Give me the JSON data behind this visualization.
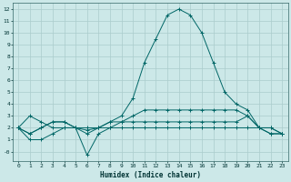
{
  "title": "",
  "xlabel": "Humidex (Indice chaleur)",
  "ylabel": "",
  "bg_color": "#cce8e8",
  "grid_color": "#aacccc",
  "line_color": "#006666",
  "xlim": [
    -0.5,
    23.5
  ],
  "ylim": [
    -0.8,
    12.5
  ],
  "yticks": [
    0,
    1,
    2,
    3,
    4,
    5,
    6,
    7,
    8,
    9,
    10,
    11,
    12
  ],
  "ytick_labels": [
    "-0",
    "1",
    "2",
    "3",
    "4",
    "5",
    "6",
    "7",
    "8",
    "9",
    "10",
    "11",
    "12"
  ],
  "xticks": [
    0,
    1,
    2,
    3,
    4,
    5,
    6,
    7,
    8,
    9,
    10,
    11,
    12,
    13,
    14,
    15,
    16,
    17,
    18,
    19,
    20,
    21,
    22,
    23
  ],
  "series": [
    {
      "x": [
        0,
        1,
        2,
        3,
        4,
        5,
        6,
        7,
        8,
        9,
        10,
        11,
        12,
        13,
        14,
        15,
        16,
        17,
        18,
        19,
        20,
        21,
        22,
        23
      ],
      "y": [
        2,
        3,
        2.5,
        2,
        2,
        2,
        2,
        2,
        2.5,
        3,
        4.5,
        7.5,
        9.5,
        11.5,
        12,
        11.5,
        10,
        7.5,
        5,
        4,
        3.5,
        2,
        2,
        1.5
      ]
    },
    {
      "x": [
        0,
        1,
        2,
        3,
        4,
        5,
        6,
        7,
        8,
        9,
        10,
        11,
        12,
        13,
        14,
        15,
        16,
        17,
        18,
        19,
        20,
        21,
        22,
        23
      ],
      "y": [
        2,
        1,
        1,
        1.5,
        2,
        2,
        -0.3,
        1.5,
        2,
        2.5,
        2.5,
        2.5,
        2.5,
        2.5,
        2.5,
        2.5,
        2.5,
        2.5,
        2.5,
        2.5,
        3,
        2,
        2,
        1.5
      ]
    },
    {
      "x": [
        0,
        1,
        2,
        3,
        4,
        5,
        6,
        7,
        8,
        9,
        10,
        11,
        12,
        13,
        14,
        15,
        16,
        17,
        18,
        19,
        20,
        21,
        22,
        23
      ],
      "y": [
        2,
        1.5,
        2,
        2.5,
        2.5,
        2,
        1.8,
        2,
        2,
        2,
        2,
        2,
        2,
        2,
        2,
        2,
        2,
        2,
        2,
        2,
        2,
        2,
        1.5,
        1.5
      ]
    },
    {
      "x": [
        0,
        1,
        2,
        3,
        4,
        5,
        6,
        7,
        8,
        9,
        10,
        11,
        12,
        13,
        14,
        15,
        16,
        17,
        18,
        19,
        20,
        21,
        22,
        23
      ],
      "y": [
        2,
        1.5,
        2,
        2.5,
        2.5,
        2,
        1.5,
        2,
        2.5,
        2.5,
        3,
        3.5,
        3.5,
        3.5,
        3.5,
        3.5,
        3.5,
        3.5,
        3.5,
        3.5,
        3,
        2,
        1.5,
        1.5
      ]
    }
  ]
}
